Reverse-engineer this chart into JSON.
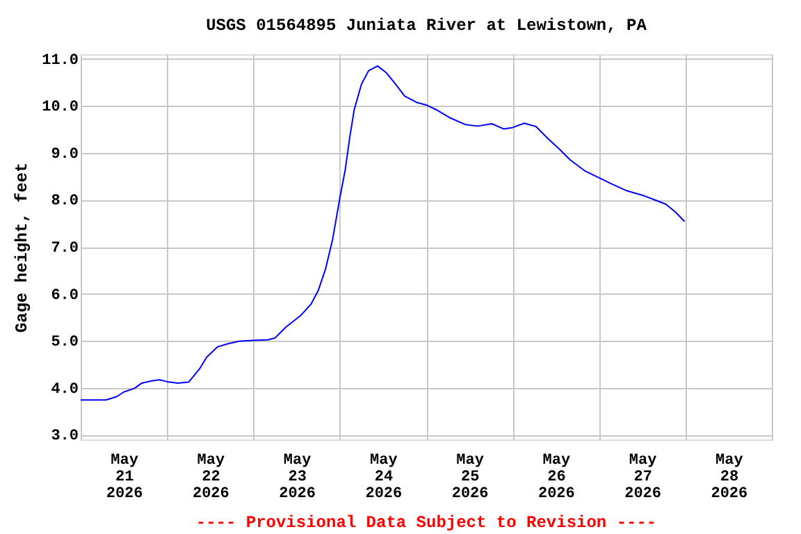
{
  "chart_data": {
    "type": "line",
    "title": "USGS 01564895 Juniata River at Lewistown, PA",
    "ylabel": "Gage height, feet",
    "annotations": [
      "---- Provisional Data Subject to Revision ----"
    ],
    "x": [
      "2026-05-21T00:00",
      "2026-05-21T07:00",
      "2026-05-21T10:00",
      "2026-05-21T12:00",
      "2026-05-21T15:00",
      "2026-05-21T17:00",
      "2026-05-21T20:00",
      "2026-05-21T22:00",
      "2026-05-22T00:00",
      "2026-05-22T03:00",
      "2026-05-22T06:00",
      "2026-05-22T09:00",
      "2026-05-22T11:00",
      "2026-05-22T14:00",
      "2026-05-22T17:00",
      "2026-05-22T20:00",
      "2026-05-23T00:00",
      "2026-05-23T04:00",
      "2026-05-23T06:00",
      "2026-05-23T09:00",
      "2026-05-23T13:00",
      "2026-05-23T16:00",
      "2026-05-23T18:00",
      "2026-05-23T20:00",
      "2026-05-23T22:00",
      "2026-05-24T00:00",
      "2026-05-24T01:30",
      "2026-05-24T02:45",
      "2026-05-24T04:00",
      "2026-05-24T06:00",
      "2026-05-24T08:00",
      "2026-05-24T10:30",
      "2026-05-24T13:00",
      "2026-05-24T15:30",
      "2026-05-24T18:00",
      "2026-05-24T21:30",
      "2026-05-25T00:00",
      "2026-05-25T02:45",
      "2026-05-25T06:30",
      "2026-05-25T11:00",
      "2026-05-25T14:15",
      "2026-05-25T18:15",
      "2026-05-25T21:30",
      "2026-05-26T00:00",
      "2026-05-26T03:15",
      "2026-05-26T06:30",
      "2026-05-26T09:45",
      "2026-05-26T13:00",
      "2026-05-26T16:00",
      "2026-05-26T20:00",
      "2026-05-27T00:00",
      "2026-05-27T03:45",
      "2026-05-27T07:30",
      "2026-05-27T12:00",
      "2026-05-27T15:30",
      "2026-05-27T18:30",
      "2026-05-27T21:15",
      "2026-05-27T23:45"
    ],
    "series": [
      {
        "color": "#0000ff",
        "values": [
          3.74,
          3.74,
          3.81,
          3.91,
          3.99,
          4.1,
          4.15,
          4.17,
          4.13,
          4.1,
          4.12,
          4.4,
          4.65,
          4.87,
          4.94,
          4.99,
          5.01,
          5.02,
          5.06,
          5.29,
          5.53,
          5.78,
          6.07,
          6.52,
          7.16,
          8.04,
          8.64,
          9.33,
          9.92,
          10.46,
          10.75,
          10.85,
          10.7,
          10.46,
          10.21,
          10.07,
          10.02,
          9.92,
          9.75,
          9.6,
          9.57,
          9.62,
          9.51,
          9.54,
          9.63,
          9.56,
          9.31,
          9.08,
          8.85,
          8.62,
          8.47,
          8.33,
          8.2,
          8.1,
          8.0,
          7.91,
          7.74,
          7.54
        ]
      }
    ],
    "xlim": [
      "2026-05-21T00:00",
      "2026-05-29T00:00"
    ],
    "xticks": [
      {
        "value": "2026-05-21T00:00",
        "label": null
      },
      {
        "value": "2026-05-21T12:00",
        "label": "May 21 2026"
      },
      {
        "value": "2026-05-22T00:00",
        "label": null
      },
      {
        "value": "2026-05-22T12:00",
        "label": "May 22 2026"
      },
      {
        "value": "2026-05-23T00:00",
        "label": null
      },
      {
        "value": "2026-05-23T12:00",
        "label": "May 23 2026"
      },
      {
        "value": "2026-05-24T00:00",
        "label": null
      },
      {
        "value": "2026-05-24T12:00",
        "label": "May 24 2026"
      },
      {
        "value": "2026-05-25T00:00",
        "label": null
      },
      {
        "value": "2026-05-25T12:00",
        "label": "May 25 2026"
      },
      {
        "value": "2026-05-26T00:00",
        "label": null
      },
      {
        "value": "2026-05-26T12:00",
        "label": "May 26 2026"
      },
      {
        "value": "2026-05-27T00:00",
        "label": null
      },
      {
        "value": "2026-05-27T12:00",
        "label": "May 27 2026"
      },
      {
        "value": "2026-05-28T00:00",
        "label": null
      },
      {
        "value": "2026-05-28T12:00",
        "label": "May 28 2026"
      },
      {
        "value": "2026-05-29T00:00",
        "label": null
      }
    ],
    "ylim": [
      2.9,
      11.1
    ],
    "yticks": [
      {
        "value": 3,
        "label": "3.0"
      },
      {
        "value": 4,
        "label": "4.0"
      },
      {
        "value": 5,
        "label": "5.0"
      },
      {
        "value": 6,
        "label": "6.0"
      },
      {
        "value": 7,
        "label": "7.0"
      },
      {
        "value": 8,
        "label": "8.0"
      },
      {
        "value": 9,
        "label": "9.0"
      },
      {
        "value": 10,
        "label": "10.0"
      },
      {
        "value": 11,
        "label": "11.0"
      }
    ],
    "grid": true,
    "marker": "none",
    "line_style": "solid"
  }
}
